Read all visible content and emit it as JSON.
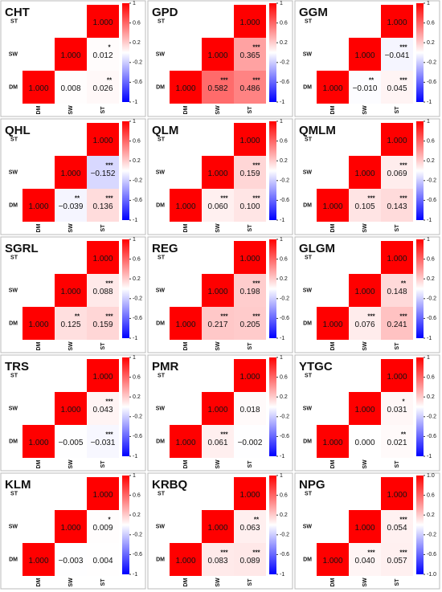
{
  "chart_data": [
    {
      "type": "heatmap",
      "title": "CHT",
      "x": [
        "DM",
        "SW",
        "ST"
      ],
      "y": [
        "ST",
        "SW",
        "DM"
      ],
      "values": [
        [
          null,
          null,
          1
        ],
        [
          null,
          1,
          0.012
        ],
        [
          1,
          0.008,
          0.026
        ]
      ],
      "value_labels": [
        [
          null,
          null,
          "1.000"
        ],
        [
          null,
          "1.000",
          "0.012"
        ],
        [
          "1.000",
          "0.008",
          "0.026"
        ]
      ],
      "stars": [
        [
          null,
          null,
          null
        ],
        [
          null,
          null,
          "*"
        ],
        [
          null,
          null,
          "**"
        ]
      ],
      "zlim": [
        -1,
        1
      ],
      "zticks": [
        1,
        0.6,
        0.2,
        -0.2,
        -0.6,
        -1
      ]
    },
    {
      "type": "heatmap",
      "title": "GPD",
      "x": [
        "DM",
        "SW",
        "ST"
      ],
      "y": [
        "ST",
        "SW",
        "DM"
      ],
      "values": [
        [
          null,
          null,
          1
        ],
        [
          null,
          1,
          0.365
        ],
        [
          1,
          0.582,
          0.486
        ]
      ],
      "value_labels": [
        [
          null,
          null,
          "1.000"
        ],
        [
          null,
          "1.000",
          "0.365"
        ],
        [
          "1.000",
          "0.582",
          "0.486"
        ]
      ],
      "stars": [
        [
          null,
          null,
          null
        ],
        [
          null,
          null,
          "***"
        ],
        [
          null,
          "***",
          "***"
        ]
      ],
      "zlim": [
        -1,
        1
      ],
      "zticks": [
        1,
        0.6,
        0.2,
        -0.2,
        -0.6,
        -1
      ]
    },
    {
      "type": "heatmap",
      "title": "GGM",
      "x": [
        "DM",
        "SW",
        "ST"
      ],
      "y": [
        "ST",
        "SW",
        "DM"
      ],
      "values": [
        [
          null,
          null,
          1
        ],
        [
          null,
          1,
          -0.041
        ],
        [
          1,
          -0.01,
          0.045
        ]
      ],
      "value_labels": [
        [
          null,
          null,
          "1.000"
        ],
        [
          null,
          "1.000",
          "−0.041"
        ],
        [
          "1.000",
          "−0.010",
          "0.045"
        ]
      ],
      "stars": [
        [
          null,
          null,
          null
        ],
        [
          null,
          null,
          "***"
        ],
        [
          null,
          "**",
          "***"
        ]
      ],
      "zlim": [
        -1,
        1
      ],
      "zticks": [
        1,
        0.6,
        0.2,
        -0.2,
        -0.6,
        -1
      ]
    },
    {
      "type": "heatmap",
      "title": "QHL",
      "x": [
        "DM",
        "SW",
        "ST"
      ],
      "y": [
        "ST",
        "SW",
        "DM"
      ],
      "values": [
        [
          null,
          null,
          1
        ],
        [
          null,
          1,
          -0.152
        ],
        [
          1,
          -0.039,
          0.136
        ]
      ],
      "value_labels": [
        [
          null,
          null,
          "1.000"
        ],
        [
          null,
          "1.000",
          "−0.152"
        ],
        [
          "1.000",
          "−0.039",
          "0.136"
        ]
      ],
      "stars": [
        [
          null,
          null,
          null
        ],
        [
          null,
          null,
          "***"
        ],
        [
          null,
          "**",
          "***"
        ]
      ],
      "zlim": [
        -1,
        1
      ],
      "zticks": [
        1,
        0.6,
        0.2,
        -0.2,
        -0.6,
        -1
      ]
    },
    {
      "type": "heatmap",
      "title": "QLM",
      "x": [
        "DM",
        "SW",
        "ST"
      ],
      "y": [
        "ST",
        "SW",
        "DM"
      ],
      "values": [
        [
          null,
          null,
          1
        ],
        [
          null,
          1,
          0.159
        ],
        [
          1,
          0.06,
          0.1
        ]
      ],
      "value_labels": [
        [
          null,
          null,
          "1.000"
        ],
        [
          null,
          "1.000",
          "0.159"
        ],
        [
          "1.000",
          "0.060",
          "0.100"
        ]
      ],
      "stars": [
        [
          null,
          null,
          null
        ],
        [
          null,
          null,
          "***"
        ],
        [
          null,
          "***",
          "***"
        ]
      ],
      "zlim": [
        -1,
        1
      ],
      "zticks": [
        1,
        0.6,
        0.2,
        -0.2,
        -0.6,
        -1
      ]
    },
    {
      "type": "heatmap",
      "title": "QMLM",
      "x": [
        "DM",
        "SW",
        "ST"
      ],
      "y": [
        "ST",
        "SW",
        "DM"
      ],
      "values": [
        [
          null,
          null,
          1
        ],
        [
          null,
          1,
          0.069
        ],
        [
          1,
          0.105,
          0.143
        ]
      ],
      "value_labels": [
        [
          null,
          null,
          "1.000"
        ],
        [
          null,
          "1.000",
          "0.069"
        ],
        [
          "1.000",
          "0.105",
          "0.143"
        ]
      ],
      "stars": [
        [
          null,
          null,
          null
        ],
        [
          null,
          null,
          "***"
        ],
        [
          null,
          "***",
          "***"
        ]
      ],
      "zlim": [
        -1,
        1
      ],
      "zticks": [
        1,
        0.6,
        0.2,
        -0.2,
        -0.6,
        -1
      ]
    },
    {
      "type": "heatmap",
      "title": "SGRL",
      "x": [
        "DM",
        "SW",
        "ST"
      ],
      "y": [
        "ST",
        "SW",
        "DM"
      ],
      "values": [
        [
          null,
          null,
          1
        ],
        [
          null,
          1,
          0.088
        ],
        [
          1,
          0.125,
          0.159
        ]
      ],
      "value_labels": [
        [
          null,
          null,
          "1.000"
        ],
        [
          null,
          "1.000",
          "0.088"
        ],
        [
          "1.000",
          "0.125",
          "0.159"
        ]
      ],
      "stars": [
        [
          null,
          null,
          null
        ],
        [
          null,
          null,
          "***"
        ],
        [
          null,
          "**",
          "***"
        ]
      ],
      "zlim": [
        -1,
        1
      ],
      "zticks": [
        1,
        0.6,
        0.2,
        -0.2,
        -0.6,
        -1
      ]
    },
    {
      "type": "heatmap",
      "title": "REG",
      "x": [
        "DM",
        "SW",
        "ST"
      ],
      "y": [
        "ST",
        "SW",
        "DM"
      ],
      "values": [
        [
          null,
          null,
          1
        ],
        [
          null,
          1,
          0.198
        ],
        [
          1,
          0.217,
          0.205
        ]
      ],
      "value_labels": [
        [
          null,
          null,
          "1.000"
        ],
        [
          null,
          "1.000",
          "0.198"
        ],
        [
          "1.000",
          "0.217",
          "0.205"
        ]
      ],
      "stars": [
        [
          null,
          null,
          null
        ],
        [
          null,
          null,
          "***"
        ],
        [
          null,
          "***",
          "***"
        ]
      ],
      "zlim": [
        -1,
        1
      ],
      "zticks": [
        1,
        0.6,
        0.2,
        -0.2,
        -0.6,
        -1
      ]
    },
    {
      "type": "heatmap",
      "title": "GLGM",
      "x": [
        "DM",
        "SW",
        "ST"
      ],
      "y": [
        "ST",
        "SW",
        "DM"
      ],
      "values": [
        [
          null,
          null,
          1
        ],
        [
          null,
          1,
          0.148
        ],
        [
          1,
          0.076,
          0.241
        ]
      ],
      "value_labels": [
        [
          null,
          null,
          "1.000"
        ],
        [
          null,
          "1.000",
          "0.148"
        ],
        [
          "1.000",
          "0.076",
          "0.241"
        ]
      ],
      "stars": [
        [
          null,
          null,
          null
        ],
        [
          null,
          null,
          "**"
        ],
        [
          null,
          "***",
          "***"
        ]
      ],
      "zlim": [
        -1,
        1
      ],
      "zticks": [
        1,
        0.6,
        0.2,
        -0.2,
        -0.6,
        -1
      ]
    },
    {
      "type": "heatmap",
      "title": "TRS",
      "x": [
        "DM",
        "SW",
        "ST"
      ],
      "y": [
        "ST",
        "SW",
        "DM"
      ],
      "values": [
        [
          null,
          null,
          1
        ],
        [
          null,
          1,
          0.043
        ],
        [
          1,
          -0.005,
          -0.031
        ]
      ],
      "value_labels": [
        [
          null,
          null,
          "1.000"
        ],
        [
          null,
          "1.000",
          "0.043"
        ],
        [
          "1.000",
          "−0.005",
          "−0.031"
        ]
      ],
      "stars": [
        [
          null,
          null,
          null
        ],
        [
          null,
          null,
          "***"
        ],
        [
          null,
          null,
          "***"
        ]
      ],
      "zlim": [
        -1,
        1
      ],
      "zticks": [
        1,
        0.6,
        0.2,
        -0.2,
        -0.6,
        -1
      ]
    },
    {
      "type": "heatmap",
      "title": "PMR",
      "x": [
        "DM",
        "SW",
        "ST"
      ],
      "y": [
        "ST",
        "SW",
        "DM"
      ],
      "values": [
        [
          null,
          null,
          1
        ],
        [
          null,
          1,
          0.018
        ],
        [
          1,
          0.061,
          -0.002
        ]
      ],
      "value_labels": [
        [
          null,
          null,
          "1.000"
        ],
        [
          null,
          "1.000",
          "0.018"
        ],
        [
          "1.000",
          "0.061",
          "−0.002"
        ]
      ],
      "stars": [
        [
          null,
          null,
          null
        ],
        [
          null,
          null,
          null
        ],
        [
          null,
          "***",
          null
        ]
      ],
      "zlim": [
        -1,
        1
      ],
      "zticks": [
        1,
        0.6,
        0.2,
        -0.2,
        -0.6,
        -1
      ]
    },
    {
      "type": "heatmap",
      "title": "YTGC",
      "x": [
        "DM",
        "SW",
        "ST"
      ],
      "y": [
        "ST",
        "SW",
        "DM"
      ],
      "values": [
        [
          null,
          null,
          1
        ],
        [
          null,
          1,
          0.031
        ],
        [
          1,
          0,
          0.021
        ]
      ],
      "value_labels": [
        [
          null,
          null,
          "1.000"
        ],
        [
          null,
          "1.000",
          "0.031"
        ],
        [
          "1.000",
          "0.000",
          "0.021"
        ]
      ],
      "stars": [
        [
          null,
          null,
          null
        ],
        [
          null,
          null,
          "*"
        ],
        [
          null,
          null,
          "**"
        ]
      ],
      "zlim": [
        -1,
        1
      ],
      "zticks": [
        1,
        0.6,
        0.2,
        -0.2,
        -0.6,
        -1
      ]
    },
    {
      "type": "heatmap",
      "title": "KLM",
      "x": [
        "DM",
        "SW",
        "ST"
      ],
      "y": [
        "ST",
        "SW",
        "DM"
      ],
      "values": [
        [
          null,
          null,
          1
        ],
        [
          null,
          1,
          0.009
        ],
        [
          1,
          -0.003,
          0.004
        ]
      ],
      "value_labels": [
        [
          null,
          null,
          "1.000"
        ],
        [
          null,
          "1.000",
          "0.009"
        ],
        [
          "1.000",
          "−0.003",
          "0.004"
        ]
      ],
      "stars": [
        [
          null,
          null,
          null
        ],
        [
          null,
          null,
          "*"
        ],
        [
          null,
          null,
          null
        ]
      ],
      "zlim": [
        -1,
        1
      ],
      "zticks": [
        1,
        0.6,
        0.2,
        -0.2,
        -0.6,
        -1
      ]
    },
    {
      "type": "heatmap",
      "title": "KRBQ",
      "x": [
        "DM",
        "SW",
        "ST"
      ],
      "y": [
        "ST",
        "SW",
        "DM"
      ],
      "values": [
        [
          null,
          null,
          1
        ],
        [
          null,
          1,
          0.063
        ],
        [
          1,
          0.083,
          0.089
        ]
      ],
      "value_labels": [
        [
          null,
          null,
          "1.000"
        ],
        [
          null,
          "1.000",
          "0.063"
        ],
        [
          "1.000",
          "0.083",
          "0.089"
        ]
      ],
      "stars": [
        [
          null,
          null,
          null
        ],
        [
          null,
          null,
          "**"
        ],
        [
          null,
          "***",
          "***"
        ]
      ],
      "zlim": [
        -1,
        1
      ],
      "zticks": [
        1,
        0.6,
        0.2,
        -0.2,
        -0.6,
        -1
      ]
    },
    {
      "type": "heatmap",
      "title": "NPG",
      "x": [
        "DM",
        "SW",
        "ST"
      ],
      "y": [
        "ST",
        "SW",
        "DM"
      ],
      "values": [
        [
          null,
          null,
          1
        ],
        [
          null,
          1,
          0.054
        ],
        [
          1,
          0.04,
          0.057
        ]
      ],
      "value_labels": [
        [
          null,
          null,
          "1.000"
        ],
        [
          null,
          "1.000",
          "0.054"
        ],
        [
          "1.000",
          "0.040",
          "0.057"
        ]
      ],
      "stars": [
        [
          null,
          null,
          null
        ],
        [
          null,
          null,
          "***"
        ],
        [
          null,
          "***",
          "***"
        ]
      ],
      "zlim": [
        -1,
        1
      ],
      "zticks": [
        {
          "value": 1,
          "label": "1.0"
        },
        0.6,
        0.2,
        -0.2,
        -0.6,
        {
          "value": -1,
          "label": "-1.0"
        }
      ]
    }
  ]
}
